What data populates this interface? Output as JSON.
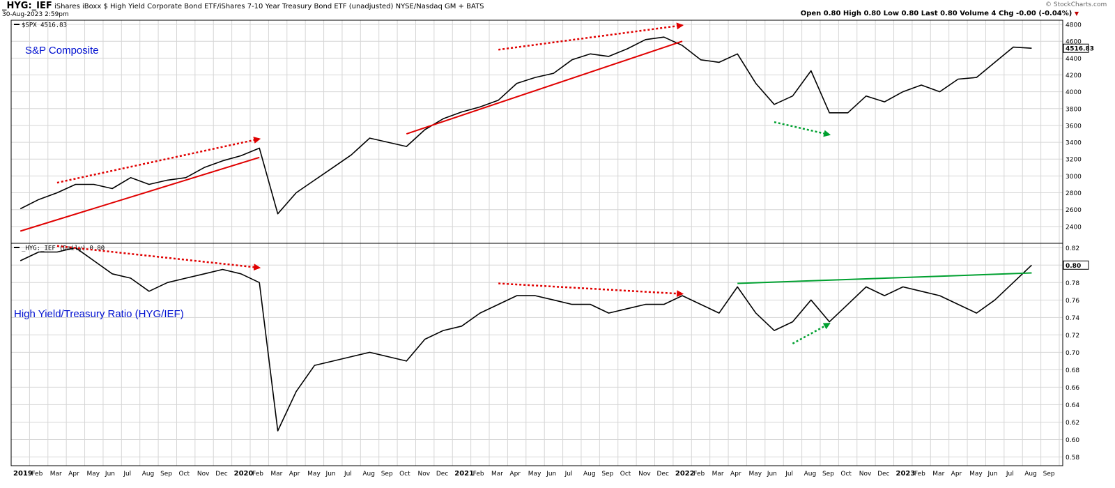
{
  "header": {
    "symbol": "_HYG:_IEF",
    "description": "iShares iBoxx $ High Yield Corporate Bond ETF/iShares 7-10 Year Treasury Bond ETF (unadjusted) NYSE/Nasdaq GM + BATS",
    "date": "30-Aug-2023 2:59pm",
    "quote": "Open 0.80  High 0.80  Low 0.80  Last 0.80  Volume 4  Chg -0.00 (-0.04%)",
    "credit": "© StockCharts.com"
  },
  "chart_data": [
    {
      "type": "line",
      "legend": "$SPX 4516.83",
      "annotation": "S&P Composite",
      "last_label": "4516.83",
      "ylim": [
        2200,
        4850
      ],
      "yticks": [
        2400,
        2600,
        2800,
        3000,
        3200,
        3400,
        3600,
        3800,
        4000,
        4200,
        4400,
        4600,
        4800
      ],
      "x": [
        "2019-01",
        "2019-02",
        "2019-03",
        "2019-04",
        "2019-05",
        "2019-06",
        "2019-07",
        "2019-08",
        "2019-09",
        "2019-10",
        "2019-11",
        "2019-12",
        "2020-01",
        "2020-02",
        "2020-03",
        "2020-04",
        "2020-05",
        "2020-06",
        "2020-07",
        "2020-08",
        "2020-09",
        "2020-10",
        "2020-11",
        "2020-12",
        "2021-01",
        "2021-02",
        "2021-03",
        "2021-04",
        "2021-05",
        "2021-06",
        "2021-07",
        "2021-08",
        "2021-09",
        "2021-10",
        "2021-11",
        "2021-12",
        "2022-01",
        "2022-02",
        "2022-03",
        "2022-04",
        "2022-05",
        "2022-06",
        "2022-07",
        "2022-08",
        "2022-09",
        "2022-10",
        "2022-11",
        "2022-12",
        "2023-01",
        "2023-02",
        "2023-03",
        "2023-04",
        "2023-05",
        "2023-06",
        "2023-07",
        "2023-08"
      ],
      "values": [
        2610,
        2720,
        2800,
        2900,
        2900,
        2850,
        2980,
        2900,
        2950,
        2980,
        3100,
        3180,
        3240,
        3330,
        2550,
        2800,
        2950,
        3100,
        3250,
        3450,
        3400,
        3350,
        3550,
        3680,
        3760,
        3820,
        3900,
        4100,
        4170,
        4220,
        4380,
        4450,
        4420,
        4510,
        4620,
        4650,
        4550,
        4380,
        4350,
        4450,
        4100,
        3850,
        3950,
        4250,
        3750,
        3750,
        3950,
        3880,
        4000,
        4080,
        4000,
        4150,
        4170,
        4350,
        4530,
        4516.83
      ]
    },
    {
      "type": "line",
      "legend": "_HYG:_IEF (Daily) 0.80",
      "annotation": "High Yield/Treasury Ratio (HYG/IEF)",
      "last_label": "0.80",
      "ylim": [
        0.57,
        0.825
      ],
      "yticks": [
        0.58,
        0.6,
        0.62,
        0.64,
        0.66,
        0.68,
        0.7,
        0.72,
        0.74,
        0.76,
        0.78,
        0.8,
        0.82
      ],
      "x": [
        "2019-01",
        "2019-02",
        "2019-03",
        "2019-04",
        "2019-05",
        "2019-06",
        "2019-07",
        "2019-08",
        "2019-09",
        "2019-10",
        "2019-11",
        "2019-12",
        "2020-01",
        "2020-02",
        "2020-03",
        "2020-04",
        "2020-05",
        "2020-06",
        "2020-07",
        "2020-08",
        "2020-09",
        "2020-10",
        "2020-11",
        "2020-12",
        "2021-01",
        "2021-02",
        "2021-03",
        "2021-04",
        "2021-05",
        "2021-06",
        "2021-07",
        "2021-08",
        "2021-09",
        "2021-10",
        "2021-11",
        "2021-12",
        "2022-01",
        "2022-02",
        "2022-03",
        "2022-04",
        "2022-05",
        "2022-06",
        "2022-07",
        "2022-08",
        "2022-09",
        "2022-10",
        "2022-11",
        "2022-12",
        "2023-01",
        "2023-02",
        "2023-03",
        "2023-04",
        "2023-05",
        "2023-06",
        "2023-07",
        "2023-08"
      ],
      "values": [
        0.805,
        0.815,
        0.815,
        0.82,
        0.805,
        0.79,
        0.785,
        0.77,
        0.78,
        0.785,
        0.79,
        0.795,
        0.79,
        0.78,
        0.61,
        0.655,
        0.685,
        0.69,
        0.695,
        0.7,
        0.695,
        0.69,
        0.715,
        0.725,
        0.73,
        0.745,
        0.755,
        0.765,
        0.765,
        0.76,
        0.755,
        0.755,
        0.745,
        0.75,
        0.755,
        0.755,
        0.765,
        0.755,
        0.745,
        0.775,
        0.745,
        0.725,
        0.735,
        0.76,
        0.735,
        0.755,
        0.775,
        0.765,
        0.775,
        0.77,
        0.765,
        0.755,
        0.745,
        0.76,
        0.78,
        0.8
      ]
    }
  ],
  "x_axis": {
    "labels": [
      {
        "t": "2019",
        "m": 0,
        "bold": true
      },
      {
        "t": "Feb",
        "m": 1
      },
      {
        "t": "Mar",
        "m": 2
      },
      {
        "t": "Apr",
        "m": 3
      },
      {
        "t": "May",
        "m": 4
      },
      {
        "t": "Jun",
        "m": 5
      },
      {
        "t": "Jul",
        "m": 6
      },
      {
        "t": "Aug",
        "m": 7
      },
      {
        "t": "Sep",
        "m": 8
      },
      {
        "t": "Oct",
        "m": 9
      },
      {
        "t": "Nov",
        "m": 10
      },
      {
        "t": "Dec",
        "m": 11
      },
      {
        "t": "2020",
        "m": 12,
        "bold": true
      },
      {
        "t": "Feb",
        "m": 13
      },
      {
        "t": "Mar",
        "m": 14
      },
      {
        "t": "Apr",
        "m": 15
      },
      {
        "t": "May",
        "m": 16
      },
      {
        "t": "Jun",
        "m": 17
      },
      {
        "t": "Jul",
        "m": 18
      },
      {
        "t": "Aug",
        "m": 19
      },
      {
        "t": "Sep",
        "m": 20
      },
      {
        "t": "Oct",
        "m": 21
      },
      {
        "t": "Nov",
        "m": 22
      },
      {
        "t": "Dec",
        "m": 23
      },
      {
        "t": "2021",
        "m": 24,
        "bold": true
      },
      {
        "t": "Feb",
        "m": 25
      },
      {
        "t": "Mar",
        "m": 26
      },
      {
        "t": "Apr",
        "m": 27
      },
      {
        "t": "May",
        "m": 28
      },
      {
        "t": "Jun",
        "m": 29
      },
      {
        "t": "Jul",
        "m": 30
      },
      {
        "t": "Aug",
        "m": 31
      },
      {
        "t": "Sep",
        "m": 32
      },
      {
        "t": "Oct",
        "m": 33
      },
      {
        "t": "Nov",
        "m": 34
      },
      {
        "t": "Dec",
        "m": 35
      },
      {
        "t": "2022",
        "m": 36,
        "bold": true
      },
      {
        "t": "Feb",
        "m": 37
      },
      {
        "t": "Mar",
        "m": 38
      },
      {
        "t": "Apr",
        "m": 39
      },
      {
        "t": "May",
        "m": 40
      },
      {
        "t": "Jun",
        "m": 41
      },
      {
        "t": "Jul",
        "m": 42
      },
      {
        "t": "Aug",
        "m": 43
      },
      {
        "t": "Sep",
        "m": 44
      },
      {
        "t": "Oct",
        "m": 45
      },
      {
        "t": "Nov",
        "m": 46
      },
      {
        "t": "Dec",
        "m": 47
      },
      {
        "t": "2023",
        "m": 48,
        "bold": true
      },
      {
        "t": "Feb",
        "m": 49
      },
      {
        "t": "Mar",
        "m": 50
      },
      {
        "t": "Apr",
        "m": 51
      },
      {
        "t": "May",
        "m": 52
      },
      {
        "t": "Jun",
        "m": 53
      },
      {
        "t": "Jul",
        "m": 54
      },
      {
        "t": "Aug",
        "m": 55
      },
      {
        "t": "Sep",
        "m": 56
      }
    ]
  },
  "trendlines": [
    {
      "panel": 0,
      "color": "#e00000",
      "style": "solid",
      "arrow": false,
      "from": [
        "2019-01",
        2345
      ],
      "to": [
        "2020-02",
        3220
      ]
    },
    {
      "panel": 0,
      "color": "#e00000",
      "style": "dotted",
      "arrow": true,
      "from": [
        "2019-03",
        2920
      ],
      "to": [
        "2020-02",
        3440
      ]
    },
    {
      "panel": 0,
      "color": "#e00000",
      "style": "solid",
      "arrow": false,
      "from": [
        "2020-10",
        3500
      ],
      "to": [
        "2022-01",
        4600
      ]
    },
    {
      "panel": 0,
      "color": "#e00000",
      "style": "dotted",
      "arrow": true,
      "from": [
        "2021-03",
        4500
      ],
      "to": [
        "2022-01",
        4790
      ]
    },
    {
      "panel": 0,
      "color": "#00a030",
      "style": "dotted",
      "arrow": true,
      "from": [
        "2022-06",
        3640
      ],
      "to": [
        "2022-09",
        3490
      ]
    },
    {
      "panel": 1,
      "color": "#e00000",
      "style": "dotted",
      "arrow": true,
      "from": [
        "2019-03",
        0.822
      ],
      "to": [
        "2020-02",
        0.797
      ]
    },
    {
      "panel": 1,
      "color": "#e00000",
      "style": "dotted",
      "arrow": true,
      "from": [
        "2021-03",
        0.779
      ],
      "to": [
        "2022-01",
        0.767
      ]
    },
    {
      "panel": 1,
      "color": "#00a030",
      "style": "dotted",
      "arrow": true,
      "from": [
        "2022-07",
        0.71
      ],
      "to": [
        "2022-09",
        0.733
      ]
    },
    {
      "panel": 1,
      "color": "#00a030",
      "style": "solid",
      "arrow": false,
      "from": [
        "2022-04",
        0.779
      ],
      "to": [
        "2023-08",
        0.791
      ]
    }
  ]
}
